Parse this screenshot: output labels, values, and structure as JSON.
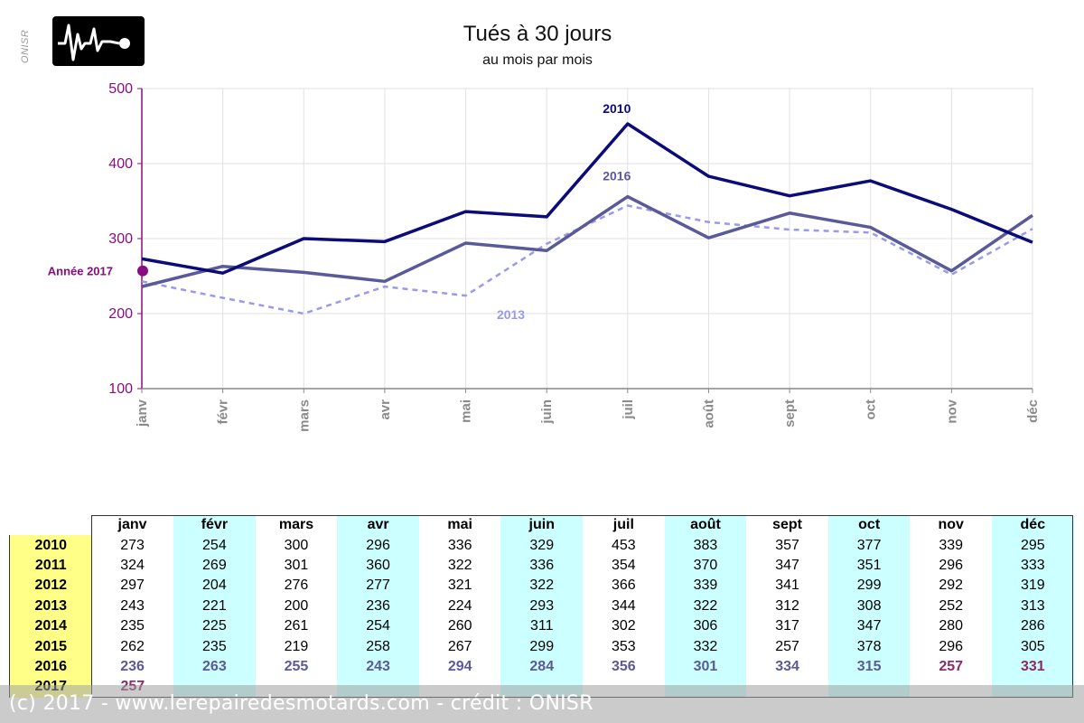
{
  "source_vertical": "ONISR",
  "footer": "(c) 2017 - www.lerepairedesmotards.com  - crédit : ONISR",
  "colors": {
    "y2010": "#0b0b7a",
    "y2016": "#5a5a9a",
    "y2013": "#9999ee",
    "y2017": "#880d7f",
    "axis": "#880d7f",
    "row_header": "#ffff88",
    "alt_column": "#ccffff"
  },
  "chart_data": {
    "type": "line",
    "title": "Tués à 30 jours",
    "subtitle": "au mois par mois",
    "categories": [
      "janv",
      "févr",
      "mars",
      "avr",
      "mai",
      "juin",
      "juil",
      "août",
      "sept",
      "oct",
      "nov",
      "déc"
    ],
    "ylim": [
      100,
      500
    ],
    "yticks": [
      100,
      200,
      300,
      400,
      500
    ],
    "grid": true,
    "series": [
      {
        "name": "2010",
        "style": "solid",
        "values": [
          273,
          254,
          300,
          296,
          336,
          329,
          453,
          383,
          357,
          377,
          339,
          295
        ]
      },
      {
        "name": "2016",
        "style": "solid",
        "values": [
          236,
          263,
          255,
          243,
          294,
          284,
          356,
          301,
          334,
          315,
          257,
          331
        ]
      },
      {
        "name": "2013",
        "style": "dashed",
        "values": [
          243,
          221,
          200,
          236,
          224,
          293,
          344,
          322,
          312,
          308,
          252,
          313
        ]
      }
    ],
    "point": {
      "label": "Année 2017",
      "x": "janv",
      "value": 257
    }
  },
  "table": {
    "columns": [
      "janv",
      "févr",
      "mars",
      "avr",
      "mai",
      "juin",
      "juil",
      "août",
      "sept",
      "oct",
      "nov",
      "déc"
    ],
    "rows": [
      {
        "year": "2010",
        "values": [
          "273",
          "254",
          "300",
          "296",
          "336",
          "329",
          "453",
          "383",
          "357",
          "377",
          "339",
          "295"
        ]
      },
      {
        "year": "2011",
        "values": [
          "324",
          "269",
          "301",
          "360",
          "322",
          "336",
          "354",
          "370",
          "347",
          "351",
          "296",
          "333"
        ]
      },
      {
        "year": "2012",
        "values": [
          "297",
          "204",
          "276",
          "277",
          "321",
          "322",
          "366",
          "339",
          "341",
          "299",
          "292",
          "319"
        ]
      },
      {
        "year": "2013",
        "values": [
          "243",
          "221",
          "200",
          "236",
          "224",
          "293",
          "344",
          "322",
          "312",
          "308",
          "252",
          "313"
        ]
      },
      {
        "year": "2014",
        "values": [
          "235",
          "225",
          "261",
          "254",
          "260",
          "311",
          "302",
          "306",
          "317",
          "347",
          "280",
          "286"
        ]
      },
      {
        "year": "2015",
        "values": [
          "262",
          "235",
          "219",
          "258",
          "267",
          "299",
          "353",
          "332",
          "257",
          "378",
          "296",
          "305"
        ]
      },
      {
        "year": "2016",
        "values": [
          "236",
          "263",
          "255",
          "243",
          "294",
          "284",
          "356",
          "301",
          "334",
          "315",
          "257",
          "331"
        ]
      },
      {
        "year": "2017",
        "values": [
          "257",
          "",
          "",
          "",
          "",
          "",
          "",
          "",
          "",
          "",
          "",
          ""
        ]
      }
    ]
  }
}
